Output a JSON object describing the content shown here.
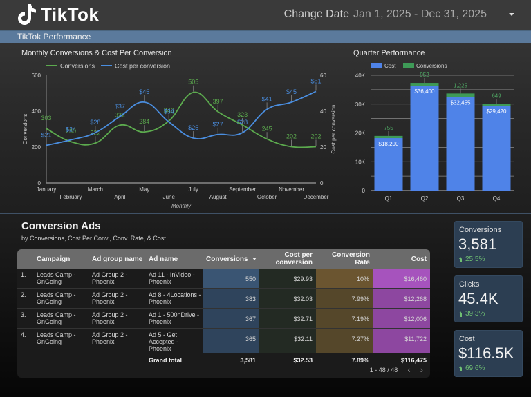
{
  "header": {
    "brand": "TikTok",
    "date_label": "Change Date",
    "date_range": "Jan 1, 2025 - Dec 31, 2025",
    "banner_title": "TikTok Performance"
  },
  "colors": {
    "conversions": "#5cab4e",
    "cost_per_conversion": "#4a8ee0",
    "bar_cost": "#4f83e8",
    "bar_conversions": "#3e9a57",
    "banner": "#5b7a9c",
    "kpi_bg": "#2c3e52",
    "positive": "#6fbf73"
  },
  "chart_data": [
    {
      "type": "line",
      "title": "Monthly Conversions & Cost Per Conversion",
      "xlabel": "Monthly",
      "ylabel": "Conversions",
      "y2label": "Cost per conversion",
      "x": [
        "January",
        "February",
        "March",
        "April",
        "May",
        "June",
        "July",
        "August",
        "September",
        "October",
        "November",
        "December"
      ],
      "ylim": [
        0,
        600
      ],
      "yticks": [
        "0",
        "200",
        "400",
        "600"
      ],
      "y2lim": [
        0,
        60
      ],
      "y2ticks": [
        "0",
        "20",
        "40",
        "60"
      ],
      "legend": [
        "Conversions",
        "Cost per conversion"
      ],
      "legend_position": "top-center",
      "series": [
        {
          "name": "Conversions",
          "axis": "left",
          "values": [
            303,
            230,
            222,
            322,
            284,
            346,
            505,
            397,
            323,
            245,
            202,
            202
          ],
          "labels": [
            "303",
            "230",
            "222",
            "322",
            "284",
            "346",
            "505",
            "397",
            "323",
            "245",
            "202",
            "202"
          ]
        },
        {
          "name": "Cost per conversion",
          "axis": "right",
          "values": [
            21,
            24,
            28,
            37,
            45,
            34,
            25,
            27,
            28,
            41,
            45,
            51
          ],
          "labels": [
            "$21",
            "$24",
            "$28",
            "$37",
            "$45",
            "$34",
            "$25",
            "$27",
            "$28",
            "$41",
            "$45",
            "$51"
          ]
        }
      ]
    },
    {
      "type": "bar",
      "stacked": true,
      "title": "Quarter Performance",
      "categories": [
        "Q1",
        "Q2",
        "Q3",
        "Q4"
      ],
      "ylim": [
        0,
        40000
      ],
      "yticks": [
        "0",
        "10K",
        "20K",
        "30K",
        "40K"
      ],
      "grid": true,
      "legend": [
        "Cost",
        "Conversions"
      ],
      "legend_position": "top-left",
      "series": [
        {
          "name": "Cost",
          "values": [
            18200,
            36400,
            32455,
            29420
          ],
          "labels": [
            "$18,200",
            "$36,400",
            "$32,455",
            "$29,420"
          ]
        },
        {
          "name": "Conversions",
          "values": [
            755,
            952,
            1225,
            649
          ],
          "labels": [
            "755",
            "952",
            "1,225",
            "649"
          ]
        }
      ]
    }
  ],
  "ads_section": {
    "title": "Conversion Ads",
    "subtitle": "by Conversions, Cost Per Conv., Conv. Rate, & Cost",
    "columns": [
      "Campaign",
      "Ad group name",
      "Ad name",
      "Conversions",
      "Cost per conversion",
      "Conversion Rate",
      "Cost"
    ],
    "sort_column": "Conversions",
    "rows": [
      {
        "index": "1.",
        "campaign": "Leads Camp - OnGoing",
        "ad_group": "Ad Group 2 - Phoenix",
        "ad_name": "Ad 11 - InVideo - Phoenix",
        "conversions": "550",
        "cost_per_conv": "$29.93",
        "conv_rate": "10%",
        "cost": "$16,460"
      },
      {
        "index": "2.",
        "campaign": "Leads Camp - OnGoing",
        "ad_group": "Ad Group 2 - Phoenix",
        "ad_name": "Ad 8 - 4Locations - Phoenix",
        "conversions": "383",
        "cost_per_conv": "$32.03",
        "conv_rate": "7.99%",
        "cost": "$12,268"
      },
      {
        "index": "3.",
        "campaign": "Leads Camp - OnGoing",
        "ad_group": "Ad Group 2 - Phoenix",
        "ad_name": "Ad 1 - 500nDrive - Phoenix",
        "conversions": "367",
        "cost_per_conv": "$32.71",
        "conv_rate": "7.19%",
        "cost": "$12,006"
      },
      {
        "index": "4.",
        "campaign": "Leads Camp - OnGoing",
        "ad_group": "Ad Group 2 - Phoenix",
        "ad_name": "Ad 5 - Get Accepted - Phoenix",
        "conversions": "365",
        "cost_per_conv": "$32.11",
        "conv_rate": "7.27%",
        "cost": "$11,722"
      }
    ],
    "grand_total": {
      "label": "Grand total",
      "conversions": "3,581",
      "cost_per_conv": "$32.53",
      "conv_rate": "7.89%",
      "cost": "$116,475"
    },
    "pagination": "1 - 48 / 48"
  },
  "kpis": [
    {
      "label": "Conversions",
      "value": "3,581",
      "delta": "25.5%"
    },
    {
      "label": "Clicks",
      "value": "45.4K",
      "delta": "39.3%"
    },
    {
      "label": "Cost",
      "value": "$116.5K",
      "delta": "69.6%"
    }
  ]
}
